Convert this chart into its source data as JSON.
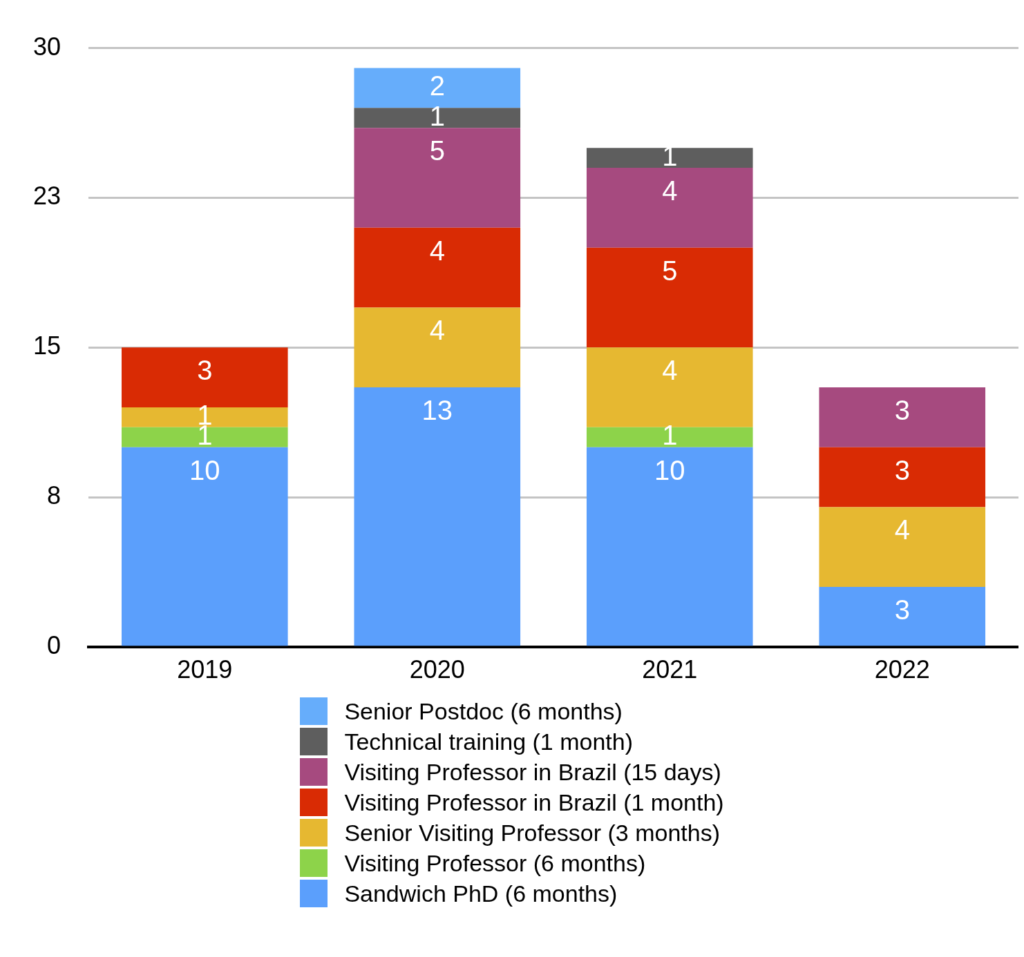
{
  "chart_data": {
    "type": "bar",
    "stacked": true,
    "categories": [
      "2019",
      "2020",
      "2021",
      "2022"
    ],
    "series": [
      {
        "name": "Sandwich PhD (6 months)",
        "color": "#5b9ffc",
        "values": [
          10,
          13,
          10,
          3
        ]
      },
      {
        "name": "Visiting Professor (6 months)",
        "color": "#8dd34a",
        "values": [
          1,
          null,
          1,
          null
        ]
      },
      {
        "name": "Senior Visiting Professor (3 months)",
        "color": "#e6b831",
        "values": [
          1,
          4,
          4,
          4
        ]
      },
      {
        "name": "Visiting Professor in Brazil (1 month)",
        "color": "#d92b04",
        "values": [
          3,
          4,
          5,
          3
        ]
      },
      {
        "name": "Visiting Professor in Brazil (15 days)",
        "color": "#a64a7f",
        "values": [
          null,
          5,
          4,
          3
        ]
      },
      {
        "name": "Technical training (1 month)",
        "color": "#5e5e5e",
        "values": [
          null,
          1,
          1,
          null
        ]
      },
      {
        "name": "Senior Postdoc (6 months)",
        "color": "#66adfb",
        "values": [
          null,
          2,
          null,
          null
        ]
      }
    ],
    "ylim": [
      0,
      30
    ],
    "yticks": [
      0,
      {
        "value": 7.5,
        "label": "8"
      },
      15,
      {
        "value": 22.5,
        "label": "23"
      },
      30
    ],
    "grid": "y",
    "legend": "bottom",
    "data_labels": true
  }
}
